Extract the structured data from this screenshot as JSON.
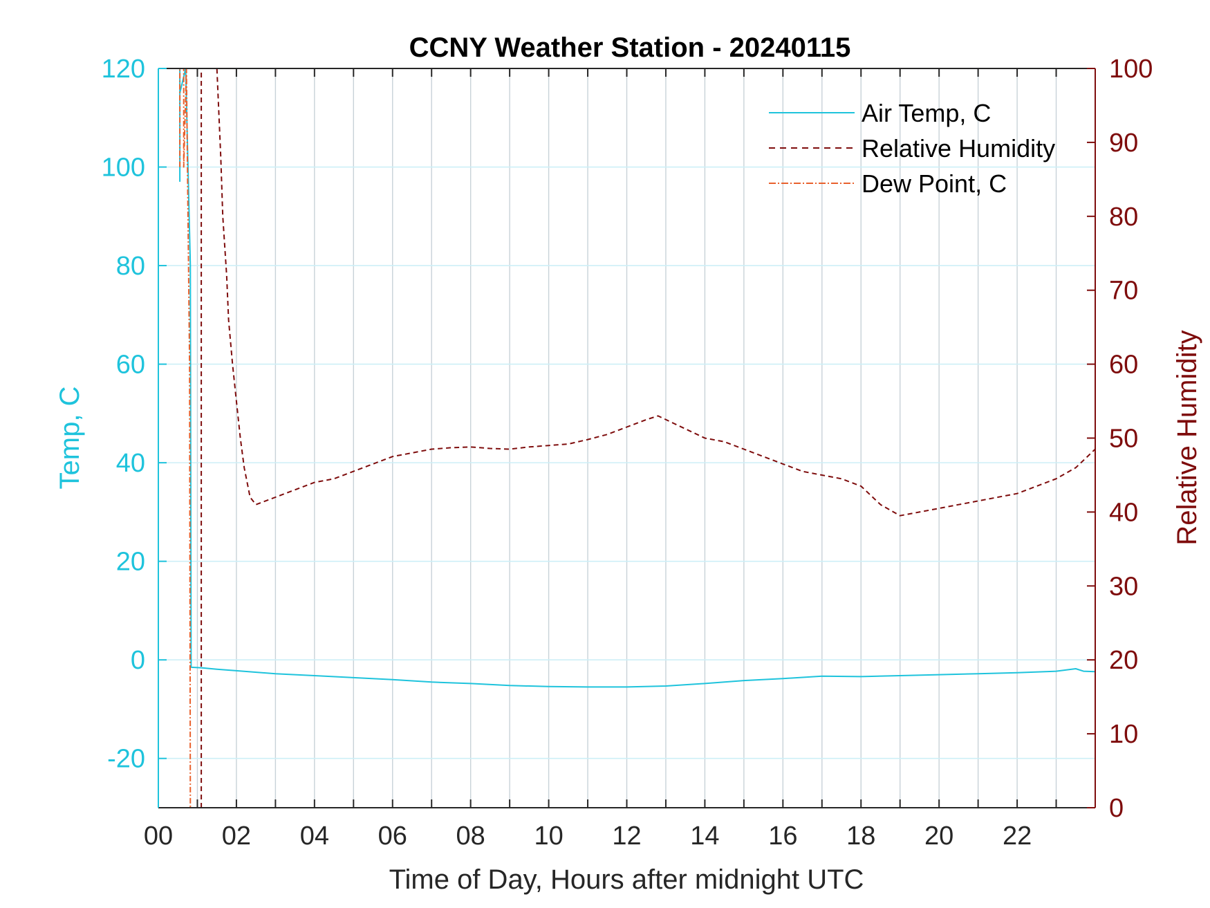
{
  "colors": {
    "air_temp": "#1ec3dc",
    "humidity": "#7e0c0c",
    "dew_point": "#e8602c",
    "left_axis": "#1ec3dc",
    "right_axis": "#7e0c0c",
    "grid_vertical": "#c8d2d8",
    "grid_horizontal": "#cdeff7",
    "axis_black": "#262626"
  },
  "chart_data": {
    "type": "line",
    "title": "CCNY Weather Station - 20240115",
    "xlabel": "Time of Day, Hours after midnight UTC",
    "ylabel_left": "Temp, C",
    "ylabel_right": "Relative Humidity",
    "xlim": [
      0,
      24
    ],
    "ylim_left": [
      -30,
      120
    ],
    "ylim_right": [
      0,
      100
    ],
    "x_ticks": [
      0,
      2,
      4,
      6,
      8,
      10,
      12,
      14,
      16,
      18,
      20,
      22
    ],
    "x_tick_labels": [
      "00",
      "02",
      "04",
      "06",
      "08",
      "10",
      "12",
      "14",
      "16",
      "18",
      "20",
      "22"
    ],
    "y_left_ticks": [
      -20,
      0,
      20,
      40,
      60,
      80,
      100,
      120
    ],
    "y_left_tick_labels": [
      "-20",
      "0",
      "20",
      "40",
      "60",
      "80",
      "100",
      "120"
    ],
    "y_right_ticks": [
      0,
      10,
      20,
      30,
      40,
      50,
      60,
      70,
      80,
      90,
      100
    ],
    "y_right_tick_labels": [
      "0",
      "10",
      "20",
      "30",
      "40",
      "50",
      "60",
      "70",
      "80",
      "90",
      "100"
    ],
    "grid": "on",
    "legend_position": "top-right",
    "legend": [
      "Air Temp, C",
      "Relative Humidity",
      "Dew Point, C"
    ],
    "series": [
      {
        "name": "Air Temp, C",
        "axis": "left",
        "style": "solid",
        "x": [
          0.55,
          0.55,
          0.55,
          0.7,
          0.82,
          0.84,
          1.1,
          1.5,
          2,
          3,
          4,
          5,
          6,
          7,
          8,
          9,
          10,
          11,
          12,
          13,
          14,
          15,
          16,
          17,
          18,
          19,
          20,
          21,
          22,
          23,
          23.5,
          23.7,
          24
        ],
        "values": [
          97,
          120,
          115,
          120,
          80,
          -1.5,
          -1.6,
          -1.9,
          -2.2,
          -2.8,
          -3.2,
          -3.6,
          -4.0,
          -4.5,
          -4.8,
          -5.2,
          -5.4,
          -5.5,
          -5.5,
          -5.3,
          -4.8,
          -4.2,
          -3.8,
          -3.3,
          -3.4,
          -3.2,
          -3.0,
          -2.8,
          -2.6,
          -2.3,
          -1.8,
          -2.3,
          -2.4
        ]
      },
      {
        "name": "Relative Humidity",
        "axis": "right",
        "style": "dashed",
        "x": [
          1.1,
          1.1,
          1.5,
          1.6,
          1.65,
          1.7,
          1.75,
          1.8,
          1.9,
          2.0,
          2.1,
          2.2,
          2.35,
          2.5,
          3,
          3.5,
          4,
          4.5,
          5,
          5.5,
          6,
          6.5,
          7,
          7.5,
          8,
          8.5,
          9,
          9.5,
          10,
          10.5,
          11,
          11.5,
          12,
          12.5,
          12.8,
          13.2,
          13.6,
          14,
          14.5,
          15,
          15.5,
          16,
          16.5,
          17,
          17.5,
          18,
          18.5,
          19,
          19.5,
          20,
          20.5,
          21,
          21.5,
          22,
          22.5,
          23,
          23.5,
          24
        ],
        "values": [
          0,
          100,
          100,
          88,
          80,
          76,
          72,
          66,
          60,
          55,
          50,
          46,
          42,
          41,
          42,
          43,
          44,
          44.5,
          45.5,
          46.5,
          47.5,
          48,
          48.5,
          48.7,
          48.8,
          48.6,
          48.5,
          48.8,
          49,
          49.2,
          49.8,
          50.5,
          51.5,
          52.5,
          53,
          52,
          51,
          50,
          49.5,
          48.5,
          47.5,
          46.5,
          45.5,
          45,
          44.5,
          43.5,
          41,
          39.5,
          40,
          40.5,
          41,
          41.5,
          42,
          42.5,
          43.5,
          44.5,
          46,
          48.5
        ]
      },
      {
        "name": "Dew Point, C",
        "axis": "left",
        "style": "dashdot",
        "x": [
          0.55,
          0.55,
          0.65,
          0.65,
          0.72,
          0.8,
          0.82,
          0.82
        ],
        "values": [
          100,
          120,
          120,
          100,
          120,
          60,
          -30,
          -30
        ]
      }
    ]
  }
}
